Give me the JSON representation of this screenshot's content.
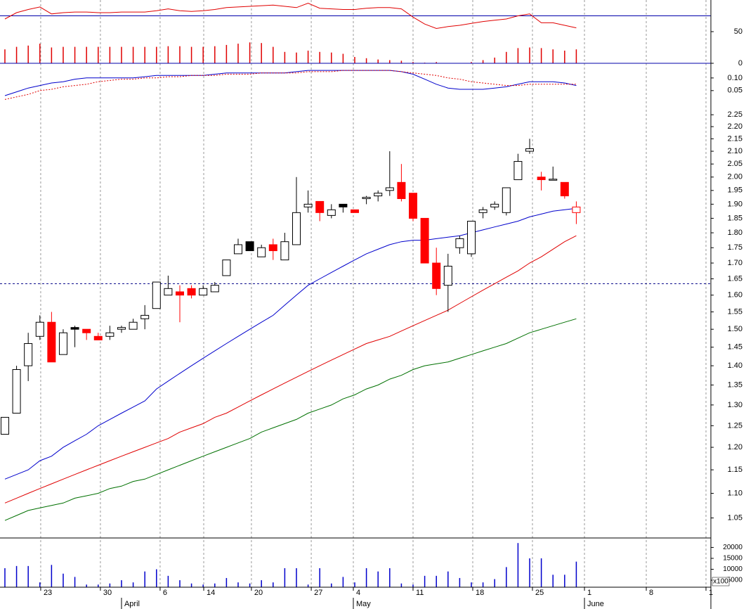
{
  "chart_data": [
    {
      "type": "indicator",
      "ylim": [
        0,
        100
      ],
      "yticks": [
        50,
        0
      ],
      "hline": 75,
      "series": [
        {
          "style": "line",
          "color": "#e00000",
          "values": [
            70,
            80,
            85,
            89,
            78,
            80,
            81,
            81,
            80,
            80,
            81,
            81,
            81,
            83,
            86,
            83,
            82,
            83,
            85,
            88,
            89,
            90,
            91,
            92,
            90,
            88,
            95,
            87,
            86,
            85,
            85,
            87,
            88,
            88,
            86,
            73,
            62,
            55,
            58,
            60,
            63,
            66,
            68,
            70,
            75,
            78,
            64,
            64,
            60,
            56
          ]
        },
        {
          "style": "bar",
          "color": "#e00000",
          "values": [
            22,
            26,
            28,
            31,
            25,
            26,
            26,
            26,
            26,
            26,
            26,
            26,
            26,
            26,
            27,
            27,
            26,
            26,
            27,
            29,
            31,
            33,
            32,
            26,
            18,
            17,
            20,
            18,
            17,
            15,
            10,
            8,
            6,
            5,
            4,
            2,
            1,
            2,
            0,
            0,
            2,
            5,
            9,
            18,
            24,
            25,
            24,
            22,
            20,
            22
          ]
        }
      ]
    },
    {
      "type": "line",
      "ylim": [
        0.005,
        0.158
      ],
      "yticks": [
        {
          "value": 0.1,
          "label": "0.10"
        },
        {
          "value": 0.05,
          "label": "0.05"
        }
      ],
      "series": [
        {
          "color": "#0000cc",
          "dashed": false,
          "values": [
            0.03,
            0.045,
            0.06,
            0.07,
            0.08,
            0.085,
            0.095,
            0.1,
            0.1,
            0.1,
            0.1,
            0.1,
            0.105,
            0.11,
            0.11,
            0.11,
            0.11,
            0.11,
            0.115,
            0.12,
            0.12,
            0.12,
            0.12,
            0.12,
            0.12,
            0.125,
            0.13,
            0.13,
            0.13,
            0.13,
            0.13,
            0.13,
            0.13,
            0.13,
            0.125,
            0.115,
            0.095,
            0.075,
            0.06,
            0.055,
            0.055,
            0.055,
            0.06,
            0.065,
            0.075,
            0.085,
            0.085,
            0.085,
            0.08,
            0.07
          ]
        },
        {
          "color": "#e00000",
          "dashed": true,
          "values": [
            0.015,
            0.025,
            0.035,
            0.05,
            0.055,
            0.065,
            0.07,
            0.075,
            0.085,
            0.09,
            0.095,
            0.095,
            0.1,
            0.1,
            0.105,
            0.105,
            0.11,
            0.11,
            0.11,
            0.115,
            0.115,
            0.115,
            0.12,
            0.12,
            0.12,
            0.12,
            0.125,
            0.125,
            0.125,
            0.13,
            0.13,
            0.13,
            0.13,
            0.13,
            0.125,
            0.12,
            0.115,
            0.11,
            0.1,
            0.095,
            0.085,
            0.08,
            0.075,
            0.07,
            0.07,
            0.075,
            0.075,
            0.075,
            0.075,
            0.075
          ]
        }
      ]
    },
    {
      "type": "candlestick",
      "log_scale": true,
      "ylim": [
        1.011,
        2.305
      ],
      "hline": 1.635,
      "yticks": [
        2.25,
        {
          "value": 2.2,
          "label": "2.20"
        },
        2.15,
        {
          "value": 2.1,
          "label": "2.10"
        },
        2.05,
        {
          "value": 2.0,
          "label": "2.00"
        },
        1.95,
        {
          "value": 1.9,
          "label": "1.90"
        },
        1.85,
        {
          "value": 1.8,
          "label": "1.80"
        },
        1.75,
        {
          "value": 1.7,
          "label": "1.70"
        },
        1.65,
        {
          "value": 1.6,
          "label": "1.60"
        },
        1.55,
        {
          "value": 1.5,
          "label": "1.50"
        },
        1.45,
        {
          "value": 1.4,
          "label": "1.40"
        },
        1.35,
        {
          "value": 1.3,
          "label": "1.30"
        },
        1.25,
        {
          "value": 1.2,
          "label": "1.20"
        },
        1.15,
        {
          "value": 1.1,
          "label": "1.10"
        },
        1.05
      ],
      "open": [
        1.23,
        1.28,
        1.4,
        1.48,
        1.52,
        1.43,
        1.505,
        1.5,
        1.48,
        1.48,
        1.5,
        1.5,
        1.53,
        1.56,
        1.6,
        1.61,
        1.62,
        1.6,
        1.61,
        1.66,
        1.73,
        1.77,
        1.72,
        1.76,
        1.71,
        1.76,
        1.89,
        1.91,
        1.86,
        1.9,
        1.88,
        1.92,
        1.93,
        1.95,
        1.98,
        1.94,
        1.85,
        1.7,
        1.63,
        1.75,
        1.73,
        1.87,
        1.89,
        1.87,
        1.99,
        2.1,
        2.0,
        1.99,
        1.98,
        1.89
      ],
      "high": [
        1.27,
        1.4,
        1.49,
        1.54,
        1.55,
        1.5,
        1.51,
        1.5,
        1.49,
        1.51,
        1.51,
        1.53,
        1.57,
        1.64,
        1.66,
        1.63,
        1.63,
        1.63,
        1.64,
        1.71,
        1.78,
        1.77,
        1.76,
        1.78,
        1.8,
        2.0,
        1.95,
        1.91,
        1.9,
        1.9,
        1.88,
        1.93,
        1.95,
        2.1,
        2.05,
        1.94,
        1.85,
        1.75,
        1.73,
        1.79,
        1.84,
        1.89,
        1.91,
        1.96,
        2.09,
        2.15,
        2.02,
        2.04,
        1.98,
        1.91
      ],
      "low": [
        1.23,
        1.28,
        1.36,
        1.47,
        1.41,
        1.43,
        1.45,
        1.47,
        1.47,
        1.47,
        1.49,
        1.5,
        1.5,
        1.56,
        1.6,
        1.52,
        1.59,
        1.6,
        1.61,
        1.66,
        1.73,
        1.74,
        1.72,
        1.71,
        1.71,
        1.76,
        1.87,
        1.84,
        1.85,
        1.87,
        1.87,
        1.9,
        1.91,
        1.93,
        1.91,
        1.84,
        1.7,
        1.6,
        1.55,
        1.73,
        1.72,
        1.85,
        1.88,
        1.86,
        1.99,
        2.09,
        1.95,
        1.99,
        1.92,
        1.83
      ],
      "close": [
        1.27,
        1.39,
        1.46,
        1.52,
        1.41,
        1.49,
        1.5,
        1.49,
        1.47,
        1.49,
        1.505,
        1.52,
        1.54,
        1.64,
        1.62,
        1.6,
        1.6,
        1.62,
        1.63,
        1.71,
        1.76,
        1.74,
        1.75,
        1.74,
        1.77,
        1.87,
        1.9,
        1.87,
        1.88,
        1.89,
        1.87,
        1.925,
        1.94,
        1.96,
        1.92,
        1.85,
        1.7,
        1.62,
        1.69,
        1.78,
        1.84,
        1.88,
        1.9,
        1.96,
        2.06,
        2.11,
        1.99,
        1.992,
        1.93,
        1.87
      ],
      "fills": [
        "#ffffff",
        "#ffffff",
        "#ffffff",
        "#ffffff",
        "#ff0000",
        "#ffffff",
        "#000000",
        "#ff0000",
        "#ff0000",
        "#ffffff",
        "#ffffff",
        "#ffffff",
        "#ffffff",
        "#ffffff",
        "#ffffff",
        "#ff0000",
        "#ff0000",
        "#ffffff",
        "#ffffff",
        "#ffffff",
        "#ffffff",
        "#000000",
        "#ffffff",
        "#ff0000",
        "#ffffff",
        "#ffffff",
        "#ffffff",
        "#ff0000",
        "#ffffff",
        "#000000",
        "#ff0000",
        "#ffffff",
        "#ffffff",
        "#ffffff",
        "#ff0000",
        "#ff0000",
        "#ff0000",
        "#ff0000",
        "#ffffff",
        "#ffffff",
        "#ffffff",
        "#ffffff",
        "#ffffff",
        "#ffffff",
        "#ffffff",
        "#ffffff",
        "#ff0000",
        "#ffffff",
        "#ff0000",
        "#ffffff"
      ],
      "edges": [
        "#000000",
        "#000000",
        "#000000",
        "#000000",
        "#ff0000",
        "#000000",
        "#000000",
        "#ff0000",
        "#ff0000",
        "#000000",
        "#000000",
        "#000000",
        "#000000",
        "#000000",
        "#000000",
        "#ff0000",
        "#ff0000",
        "#000000",
        "#000000",
        "#000000",
        "#000000",
        "#000000",
        "#000000",
        "#ff0000",
        "#000000",
        "#000000",
        "#000000",
        "#ff0000",
        "#000000",
        "#000000",
        "#ff0000",
        "#000000",
        "#000000",
        "#000000",
        "#ff0000",
        "#ff0000",
        "#ff0000",
        "#ff0000",
        "#000000",
        "#000000",
        "#000000",
        "#000000",
        "#000000",
        "#000000",
        "#000000",
        "#000000",
        "#ff0000",
        "#000000",
        "#ff0000",
        "#ff0000"
      ],
      "series": [
        {
          "color": "#0000cc",
          "values": [
            1.13,
            1.14,
            1.15,
            1.17,
            1.18,
            1.2,
            1.215,
            1.23,
            1.25,
            1.265,
            1.28,
            1.295,
            1.31,
            1.34,
            1.36,
            1.38,
            1.4,
            1.42,
            1.44,
            1.46,
            1.48,
            1.5,
            1.52,
            1.54,
            1.57,
            1.6,
            1.63,
            1.65,
            1.67,
            1.69,
            1.71,
            1.73,
            1.745,
            1.76,
            1.77,
            1.775,
            1.775,
            1.78,
            1.785,
            1.79,
            1.8,
            1.81,
            1.82,
            1.83,
            1.84,
            1.855,
            1.865,
            1.875,
            1.88,
            1.885
          ]
        },
        {
          "color": "#e00000",
          "values": [
            1.08,
            1.09,
            1.1,
            1.11,
            1.12,
            1.13,
            1.14,
            1.15,
            1.16,
            1.17,
            1.18,
            1.19,
            1.2,
            1.21,
            1.22,
            1.235,
            1.245,
            1.255,
            1.27,
            1.28,
            1.295,
            1.31,
            1.325,
            1.34,
            1.355,
            1.37,
            1.385,
            1.4,
            1.415,
            1.43,
            1.445,
            1.46,
            1.47,
            1.48,
            1.495,
            1.51,
            1.525,
            1.54,
            1.555,
            1.575,
            1.595,
            1.615,
            1.635,
            1.655,
            1.675,
            1.7,
            1.72,
            1.745,
            1.77,
            1.79
          ]
        },
        {
          "color": "#007000",
          "values": [
            1.045,
            1.055,
            1.065,
            1.07,
            1.075,
            1.08,
            1.09,
            1.095,
            1.1,
            1.11,
            1.115,
            1.125,
            1.13,
            1.14,
            1.15,
            1.16,
            1.17,
            1.18,
            1.19,
            1.2,
            1.21,
            1.22,
            1.235,
            1.245,
            1.255,
            1.265,
            1.28,
            1.29,
            1.3,
            1.315,
            1.325,
            1.34,
            1.35,
            1.365,
            1.375,
            1.39,
            1.4,
            1.405,
            1.41,
            1.42,
            1.43,
            1.44,
            1.45,
            1.46,
            1.475,
            1.49,
            1.5,
            1.51,
            1.52,
            1.53
          ]
        }
      ]
    },
    {
      "type": "bar",
      "ylim": [
        1800,
        24000
      ],
      "yticks": [
        20000,
        15000,
        10000,
        5000
      ],
      "unit_label": "x100",
      "color": "#0000cc",
      "values": [
        10500,
        11500,
        11500,
        4000,
        12000,
        8000,
        6500,
        3000,
        3000,
        3500,
        5000,
        4000,
        9000,
        10000,
        7000,
        5000,
        3500,
        3000,
        3500,
        6000,
        4000,
        3500,
        5000,
        4000,
        10500,
        10500,
        3000,
        10500,
        3500,
        6500,
        4000,
        10500,
        9000,
        10500,
        3500,
        3000,
        7000,
        7000,
        9000,
        6000,
        4000,
        4000,
        5500,
        11000,
        22000,
        15000,
        15000,
        7500,
        7500,
        13500
      ],
      "xlim": [
        -0.42,
        60.54
      ],
      "xticks": [
        {
          "value": 3.07,
          "label": "23"
        },
        {
          "value": 8.19,
          "label": "30"
        },
        {
          "value": 13.31,
          "label": "6"
        },
        {
          "value": 17.05,
          "label": "14"
        },
        {
          "value": 21.14,
          "label": "20"
        },
        {
          "value": 26.27,
          "label": "27"
        },
        {
          "value": 29.88,
          "label": "4"
        },
        {
          "value": 35.0,
          "label": "11"
        },
        {
          "value": 40.12,
          "label": "18"
        },
        {
          "value": 45.24,
          "label": "25"
        },
        {
          "value": 49.7,
          "label": "1"
        },
        {
          "value": 55.0,
          "label": "8"
        },
        {
          "value": 60.12,
          "label": "1"
        }
      ],
      "month_ticks": [
        {
          "value": 10.0,
          "label": "April"
        },
        {
          "value": 29.88,
          "label": "May"
        },
        {
          "value": 49.7,
          "label": "June"
        }
      ]
    }
  ]
}
